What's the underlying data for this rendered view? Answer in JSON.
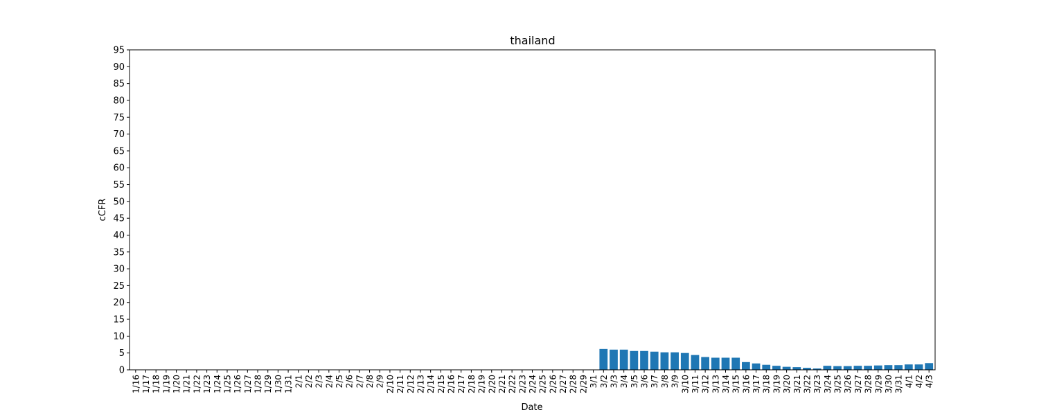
{
  "chart_data": {
    "type": "bar",
    "title": "thailand",
    "xlabel": "Date",
    "ylabel": "cCFR",
    "ylim": [
      0,
      95
    ],
    "yticks": [
      0,
      5,
      10,
      15,
      20,
      25,
      30,
      35,
      40,
      45,
      50,
      55,
      60,
      65,
      70,
      75,
      80,
      85,
      90,
      95
    ],
    "grid": false,
    "bar_color": "#1f77b4",
    "categories": [
      "1/16",
      "1/17",
      "1/18",
      "1/19",
      "1/20",
      "1/21",
      "1/22",
      "1/23",
      "1/24",
      "1/25",
      "1/26",
      "1/27",
      "1/28",
      "1/29",
      "1/30",
      "1/31",
      "2/1",
      "2/2",
      "2/3",
      "2/4",
      "2/5",
      "2/6",
      "2/7",
      "2/8",
      "2/9",
      "2/10",
      "2/11",
      "2/12",
      "2/13",
      "2/14",
      "2/15",
      "2/16",
      "2/17",
      "2/18",
      "2/19",
      "2/20",
      "2/21",
      "2/22",
      "2/23",
      "2/24",
      "2/25",
      "2/26",
      "2/27",
      "2/28",
      "2/29",
      "3/1",
      "3/2",
      "3/3",
      "3/4",
      "3/5",
      "3/6",
      "3/7",
      "3/8",
      "3/9",
      "3/10",
      "3/11",
      "3/12",
      "3/13",
      "3/14",
      "3/15",
      "3/16",
      "3/17",
      "3/18",
      "3/19",
      "3/20",
      "3/21",
      "3/22",
      "3/23",
      "3/24",
      "3/25",
      "3/26",
      "3/27",
      "3/28",
      "3/29",
      "3/30",
      "3/31",
      "4/1",
      "4/2",
      "4/3"
    ],
    "values": [
      0,
      0,
      0,
      0,
      0,
      0,
      0,
      0,
      0,
      0,
      0,
      0,
      0,
      0,
      0,
      0,
      0,
      0,
      0,
      0,
      0,
      0,
      0,
      0,
      0,
      0,
      0,
      0,
      0,
      0,
      0,
      0,
      0,
      0,
      0,
      0,
      0,
      0,
      0,
      0,
      0,
      0,
      0,
      0,
      0,
      0,
      6.2,
      6.0,
      6.0,
      5.6,
      5.6,
      5.4,
      5.2,
      5.2,
      5.0,
      4.4,
      3.8,
      3.6,
      3.6,
      3.6,
      2.3,
      1.9,
      1.5,
      1.2,
      0.9,
      0.8,
      0.6,
      0.4,
      1.2,
      1.1,
      1.1,
      1.2,
      1.2,
      1.3,
      1.4,
      1.4,
      1.6,
      1.6,
      2.0
    ]
  }
}
